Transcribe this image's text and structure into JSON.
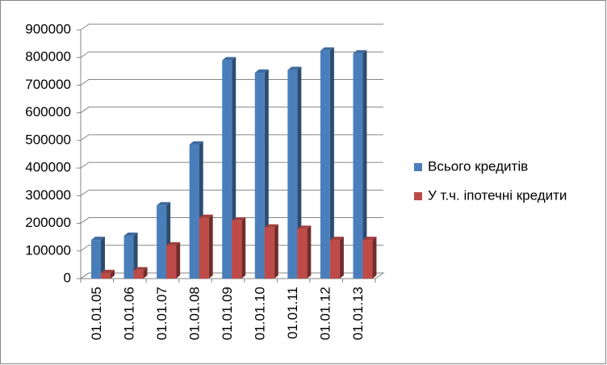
{
  "chart_data": {
    "type": "bar",
    "categories": [
      "01.01.05",
      "01.01.06",
      "01.01.07",
      "01.01.08",
      "01.01.09",
      "01.01.10",
      "01.01.11",
      "01.01.12",
      "01.01.13"
    ],
    "series": [
      {
        "name": "Всього кредитів",
        "color": "#4a7ebb",
        "values": [
          140000,
          155000,
          265000,
          485000,
          790000,
          745000,
          755000,
          825000,
          815000
        ]
      },
      {
        "name": "У т.ч. іпотечні кредити",
        "color": "#be4b48",
        "values": [
          20000,
          30000,
          120000,
          220000,
          210000,
          185000,
          180000,
          140000,
          140000
        ]
      }
    ],
    "ylim": [
      0,
      900000
    ],
    "yticks": [
      0,
      100000,
      200000,
      300000,
      400000,
      500000,
      600000,
      700000,
      800000,
      900000
    ],
    "grid": true,
    "legend": "right"
  }
}
